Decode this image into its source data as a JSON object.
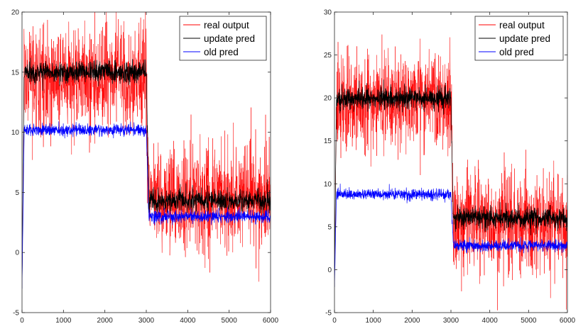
{
  "chart_data": [
    {
      "type": "line",
      "xlim": [
        0,
        6000
      ],
      "ylim": [
        -5,
        20
      ],
      "xticks": [
        "0",
        "1000",
        "2000",
        "3000",
        "4000",
        "5000",
        "6000"
      ],
      "yticks": [
        "-5",
        "0",
        "5",
        "10",
        "15",
        "20"
      ],
      "grid": false,
      "legend_position": "top-right",
      "series": [
        {
          "name": "real output",
          "color": "#ff0000",
          "x": [
            0,
            50,
            3000,
            3060,
            6000
          ],
          "y_mean": [
            -3,
            14.5,
            14.5,
            4.5,
            4.5
          ],
          "y_noise": 2.2
        },
        {
          "name": "update pred",
          "color": "#000000",
          "x": [
            0,
            50,
            3000,
            3060,
            6000
          ],
          "y_mean": [
            -3,
            15,
            15,
            4.3,
            4.3
          ],
          "y_noise": 0.45
        },
        {
          "name": "old pred",
          "color": "#0000ff",
          "x": [
            0,
            50,
            3000,
            3060,
            6000
          ],
          "y_mean": [
            -3,
            10.2,
            10.2,
            3.0,
            3.0
          ],
          "y_noise": 0.25
        }
      ]
    },
    {
      "type": "line",
      "xlim": [
        0,
        6000
      ],
      "ylim": [
        -5,
        30
      ],
      "xticks": [
        "0",
        "1000",
        "2000",
        "3000",
        "4000",
        "5000",
        "6000"
      ],
      "yticks": [
        "-5",
        "0",
        "5",
        "10",
        "15",
        "20",
        "25",
        "30"
      ],
      "grid": false,
      "legend_position": "top-right",
      "series": [
        {
          "name": "real output",
          "color": "#ff0000",
          "x": [
            0,
            50,
            3000,
            3060,
            6000
          ],
          "y_mean": [
            -2,
            19.5,
            19.5,
            5.5,
            5.5
          ],
          "y_noise": 2.8
        },
        {
          "name": "update pred",
          "color": "#000000",
          "x": [
            0,
            50,
            3000,
            3060,
            6000
          ],
          "y_mean": [
            -2,
            20,
            20,
            6,
            6
          ],
          "y_noise": 0.6
        },
        {
          "name": "old pred",
          "color": "#0000ff",
          "x": [
            0,
            50,
            3000,
            3060,
            6000
          ],
          "y_mean": [
            -2,
            8.8,
            8.8,
            2.8,
            2.8
          ],
          "y_noise": 0.3
        }
      ]
    }
  ]
}
